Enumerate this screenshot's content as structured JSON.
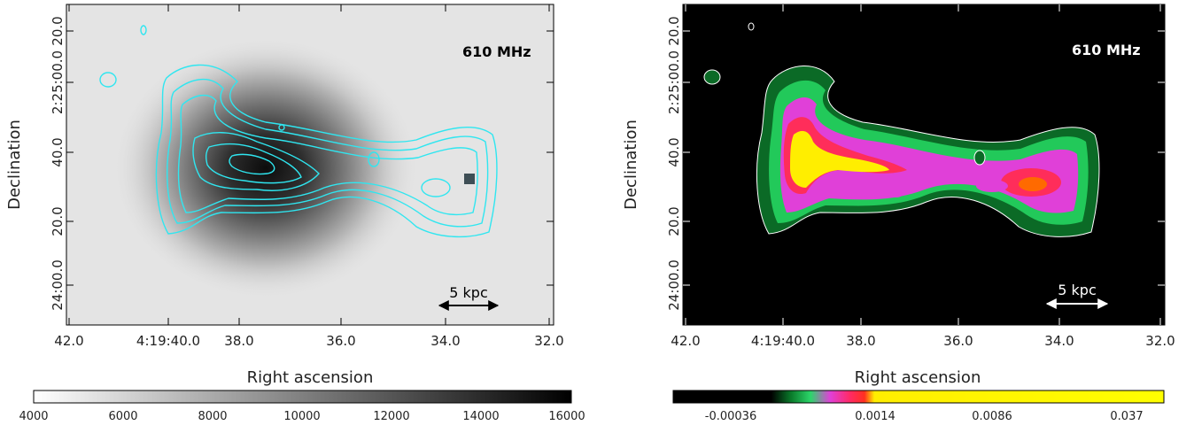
{
  "panels": [
    {
      "frequency_label": "610 MHz",
      "scale_bar_label": "5 kpc",
      "ylabel": "Declination",
      "xlabel": "Right ascension",
      "ra_ticks": [
        "42.0",
        "4:19:40.0",
        "38.0",
        "36.0",
        "34.0",
        "32.0"
      ],
      "dec_ticks": [
        "20.0",
        "2:25:00.0",
        "40.0",
        "20.0",
        "24:00.0"
      ],
      "colorbar_ticks": [
        "4000",
        "6000",
        "8000",
        "10000",
        "12000",
        "14000",
        "16000"
      ],
      "contour_color": "#2fe6f0"
    },
    {
      "frequency_label": "610 MHz",
      "scale_bar_label": "5 kpc",
      "ylabel": "Declination",
      "xlabel": "Right ascension",
      "ra_ticks": [
        "42.0",
        "4:19:40.0",
        "38.0",
        "36.0",
        "34.0",
        "32.0"
      ],
      "dec_ticks": [
        "20.0",
        "2:25:00.0",
        "40.0",
        "20.0",
        "24:00.0"
      ],
      "colorbar_ticks": [
        "-0.00036",
        "0.0014",
        "0.0086",
        "0.037"
      ]
    }
  ]
}
